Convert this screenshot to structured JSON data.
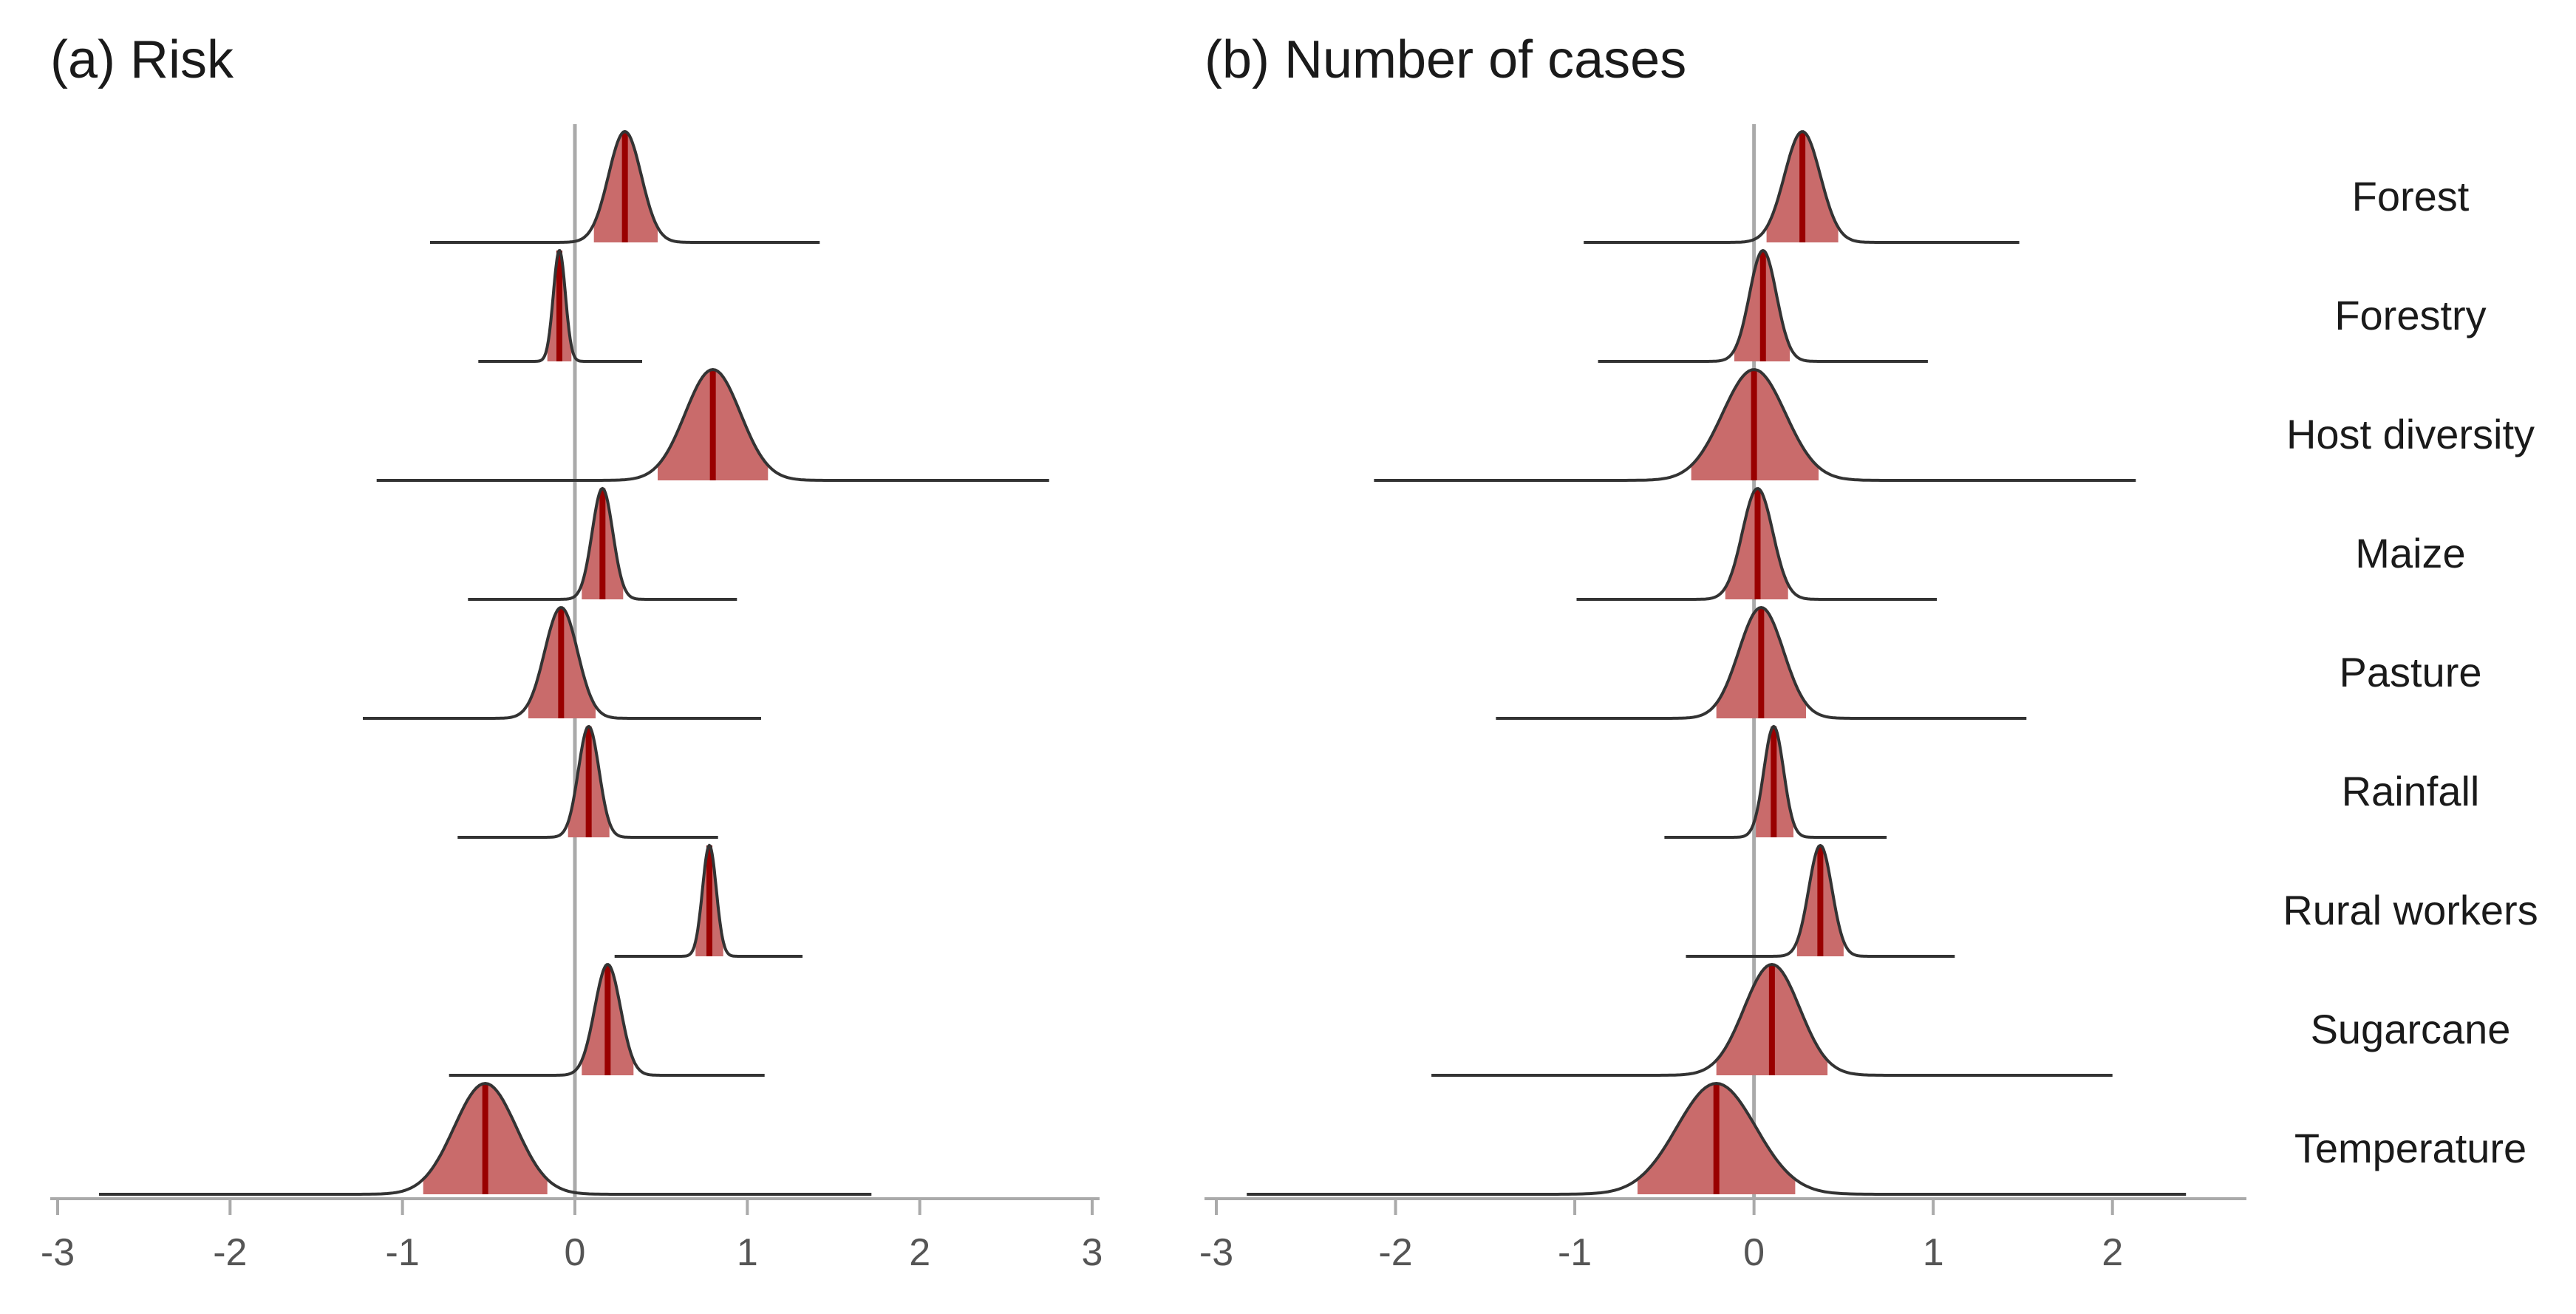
{
  "chart_data": [
    {
      "type": "ridgeline",
      "title": "(a) Risk",
      "xlim": [
        -3,
        3
      ],
      "xticks": [
        -3,
        -2,
        -1,
        0,
        1,
        2,
        3
      ],
      "reference_line": 0,
      "grid": false,
      "colors": {
        "band": "#c96b6b",
        "median": "#990000",
        "curve": "#333333",
        "refline": "#aaaaaa",
        "axis": "#aaaaaa",
        "text": "#555555"
      },
      "rows": [
        {
          "label": "Forest",
          "median": 0.29,
          "ci": [
            0.11,
            0.48
          ],
          "range": [
            -0.84,
            1.42
          ],
          "sd": 0.095
        },
        {
          "label": "Forestry",
          "median": -0.09,
          "ci": [
            -0.16,
            -0.02
          ],
          "range": [
            -0.56,
            0.39
          ],
          "sd": 0.035
        },
        {
          "label": "Host diversity",
          "median": 0.8,
          "ci": [
            0.48,
            1.12
          ],
          "range": [
            -1.15,
            2.75
          ],
          "sd": 0.16
        },
        {
          "label": "Maize",
          "median": 0.16,
          "ci": [
            0.04,
            0.28
          ],
          "range": [
            -0.62,
            0.94
          ],
          "sd": 0.06
        },
        {
          "label": "Pasture",
          "median": -0.08,
          "ci": [
            -0.27,
            0.12
          ],
          "range": [
            -1.23,
            1.08
          ],
          "sd": 0.095
        },
        {
          "label": "Rainfall",
          "median": 0.08,
          "ci": [
            -0.04,
            0.2
          ],
          "range": [
            -0.68,
            0.83
          ],
          "sd": 0.06
        },
        {
          "label": "Rural workers",
          "median": 0.78,
          "ci": [
            0.7,
            0.86
          ],
          "range": [
            0.23,
            1.32
          ],
          "sd": 0.04
        },
        {
          "label": "Sugarcane",
          "median": 0.19,
          "ci": [
            0.04,
            0.34
          ],
          "range": [
            -0.73,
            1.1
          ],
          "sd": 0.075
        },
        {
          "label": "Temperature",
          "median": -0.52,
          "ci": [
            -0.88,
            -0.16
          ],
          "range": [
            -2.76,
            1.72
          ],
          "sd": 0.18
        }
      ]
    },
    {
      "type": "ridgeline",
      "title": "(b) Number of cases",
      "xlim": [
        -3,
        2.5
      ],
      "xticks": [
        -3,
        -2,
        -1,
        0,
        1,
        2
      ],
      "reference_line": 0,
      "grid": false,
      "colors": {
        "band": "#c96b6b",
        "median": "#990000",
        "curve": "#333333",
        "refline": "#aaaaaa",
        "axis": "#aaaaaa",
        "text": "#555555"
      },
      "rows": [
        {
          "label": "Forest",
          "median": 0.27,
          "ci": [
            0.07,
            0.47
          ],
          "range": [
            -0.95,
            1.48
          ],
          "sd": 0.1
        },
        {
          "label": "Forestry",
          "median": 0.05,
          "ci": [
            -0.11,
            0.2
          ],
          "range": [
            -0.87,
            0.97
          ],
          "sd": 0.075
        },
        {
          "label": "Host diversity",
          "median": 0.0,
          "ci": [
            -0.35,
            0.36
          ],
          "range": [
            -2.12,
            2.13
          ],
          "sd": 0.175
        },
        {
          "label": "Maize",
          "median": 0.02,
          "ci": [
            -0.16,
            0.19
          ],
          "range": [
            -0.99,
            1.02
          ],
          "sd": 0.085
        },
        {
          "label": "Pasture",
          "median": 0.04,
          "ci": [
            -0.21,
            0.29
          ],
          "range": [
            -1.44,
            1.52
          ],
          "sd": 0.125
        },
        {
          "label": "Rainfall",
          "median": 0.11,
          "ci": [
            0.01,
            0.22
          ],
          "range": [
            -0.5,
            0.74
          ],
          "sd": 0.055
        },
        {
          "label": "Rural workers",
          "median": 0.37,
          "ci": [
            0.24,
            0.5
          ],
          "range": [
            -0.38,
            1.12
          ],
          "sd": 0.065
        },
        {
          "label": "Sugarcane",
          "median": 0.1,
          "ci": [
            -0.21,
            0.41
          ],
          "range": [
            -1.8,
            2.0
          ],
          "sd": 0.155
        },
        {
          "label": "Temperature",
          "median": -0.21,
          "ci": [
            -0.65,
            0.23
          ],
          "range": [
            -2.83,
            2.41
          ],
          "sd": 0.22
        }
      ]
    }
  ]
}
